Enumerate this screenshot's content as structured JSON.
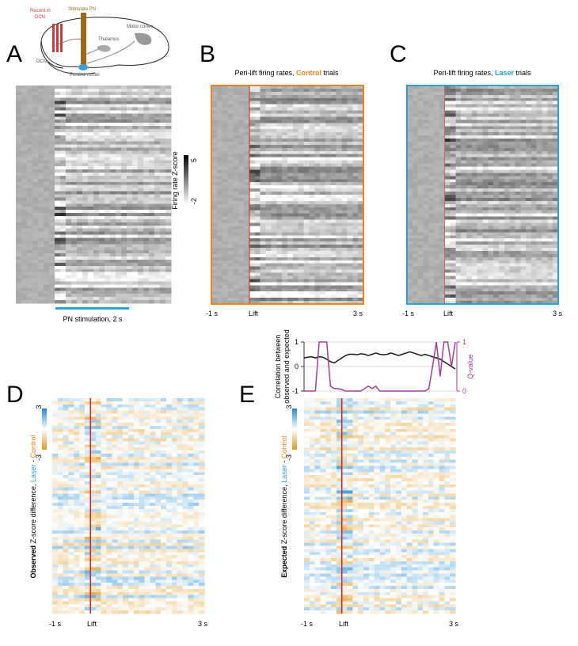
{
  "panel_a": {
    "letter": "A",
    "schematic": {
      "record": [
        "Record in",
        "DCN"
      ],
      "stimulate": "Stimulate PN",
      "motor_cortex": "Motor cortex",
      "thalamus": "Thalamus",
      "dcn": "DCN",
      "pontine": "Pontine nuclei"
    },
    "colorbar": {
      "label": "Firing rate Z-score",
      "ticks": [
        -2,
        5
      ]
    },
    "stim_label": "PN stimulation, 2 s"
  },
  "panel_b": {
    "letter": "B",
    "title": [
      "Peri-lift firing rates, ",
      "Control",
      " trials"
    ],
    "x_labels": [
      "-1 s",
      "Lift",
      "3 s"
    ]
  },
  "panel_c": {
    "letter": "C",
    "title": [
      "Peri-lift firing rates, ",
      "Laser",
      " trials"
    ],
    "x_labels": [
      "-1 s",
      "Lift",
      "3 s"
    ]
  },
  "panel_d": {
    "letter": "D",
    "y_label": [
      "Observed",
      " Z-score difference, ",
      "Laser",
      " - ",
      "Control"
    ],
    "colorbar": {
      "ticks": [
        -3,
        3
      ]
    },
    "x_labels": [
      "-1 s",
      "Lift",
      "3 s"
    ]
  },
  "panel_e": {
    "letter": "E",
    "y_label": [
      "Expected",
      " Z-score difference, ",
      "Laser",
      " - ",
      "Control"
    ],
    "colorbar": {
      "ticks": [
        -3,
        3
      ]
    },
    "x_labels": [
      "-1 s",
      "Lift",
      "3 s"
    ]
  },
  "chart_data": {
    "type": "line",
    "y_label": [
      "Correlation between",
      "observed and expected"
    ],
    "y2_label": "Q-value",
    "x": [
      -1.0,
      -0.9,
      -0.8,
      -0.7,
      -0.6,
      -0.5,
      -0.4,
      -0.3,
      -0.2,
      -0.1,
      0.0,
      0.1,
      0.2,
      0.3,
      0.4,
      0.5,
      0.6,
      0.7,
      0.8,
      0.9,
      1.0,
      1.1,
      1.2,
      1.3,
      1.4,
      1.5,
      1.6,
      1.7,
      1.8,
      1.9,
      2.0,
      2.1,
      2.2,
      2.3,
      2.4,
      2.5,
      2.6,
      2.7,
      2.8,
      2.9,
      3.0
    ],
    "xlim": [
      -1,
      3
    ],
    "ylim": [
      -1,
      1
    ],
    "yticks": [
      -1,
      0,
      1
    ],
    "y2lim": [
      0,
      1
    ],
    "y2ticks": [
      0,
      1
    ],
    "grid": true,
    "series": [
      {
        "color": "#1a1a1a",
        "values": [
          0.35,
          0.38,
          0.4,
          0.35,
          0.4,
          0.38,
          0.3,
          0.2,
          0.15,
          0.25,
          0.35,
          0.45,
          0.5,
          0.5,
          0.48,
          0.52,
          0.5,
          0.45,
          0.5,
          0.55,
          0.5,
          0.48,
          0.5,
          0.55,
          0.5,
          0.45,
          0.5,
          0.55,
          0.6,
          0.55,
          0.5,
          0.45,
          0.5,
          0.45,
          0.4,
          0.35,
          0.3,
          0.2,
          0.1,
          0.0,
          -0.1
        ]
      },
      {
        "color": "#a0409a",
        "axis": "y2",
        "values": [
          0,
          0,
          0,
          0,
          1,
          1,
          1,
          0.1,
          0.05,
          0.05,
          0.03,
          0,
          0,
          0,
          0,
          0,
          0.05,
          0.1,
          0.05,
          0.1,
          0,
          0,
          0,
          0,
          0,
          0,
          0,
          0,
          0,
          0,
          0,
          0,
          0,
          0.05,
          0.5,
          1,
          0.3,
          1,
          1,
          0.5,
          1
        ]
      }
    ]
  }
}
